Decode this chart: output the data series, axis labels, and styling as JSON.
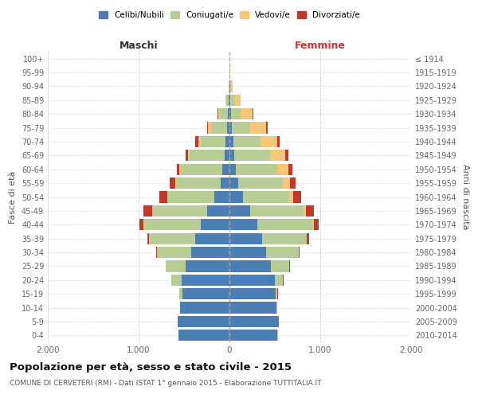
{
  "age_groups": [
    "0-4",
    "5-9",
    "10-14",
    "15-19",
    "20-24",
    "25-29",
    "30-34",
    "35-39",
    "40-44",
    "45-49",
    "50-54",
    "55-59",
    "60-64",
    "65-69",
    "70-74",
    "75-79",
    "80-84",
    "85-89",
    "90-94",
    "95-99",
    "100+"
  ],
  "birth_years": [
    "2010-2014",
    "2005-2009",
    "2000-2004",
    "1995-1999",
    "1990-1994",
    "1985-1989",
    "1980-1984",
    "1975-1979",
    "1970-1974",
    "1965-1969",
    "1960-1964",
    "1955-1959",
    "1950-1954",
    "1945-1949",
    "1940-1944",
    "1935-1939",
    "1930-1934",
    "1925-1929",
    "1920-1924",
    "1915-1919",
    "≤ 1914"
  ],
  "maschi": {
    "celibi": [
      560,
      570,
      540,
      520,
      530,
      480,
      420,
      380,
      320,
      250,
      170,
      100,
      75,
      55,
      40,
      25,
      15,
      5,
      2,
      0,
      0
    ],
    "coniugati": [
      1,
      2,
      5,
      30,
      110,
      220,
      380,
      500,
      620,
      600,
      510,
      490,
      460,
      380,
      280,
      180,
      90,
      30,
      8,
      2,
      0
    ],
    "vedovi": [
      0,
      0,
      0,
      0,
      1,
      1,
      1,
      2,
      3,
      5,
      5,
      10,
      15,
      20,
      25,
      30,
      15,
      5,
      2,
      0,
      0
    ],
    "divorziati": [
      0,
      0,
      0,
      1,
      2,
      5,
      10,
      25,
      45,
      90,
      90,
      55,
      30,
      30,
      30,
      10,
      8,
      3,
      0,
      0,
      0
    ]
  },
  "femmine": {
    "nubili": [
      530,
      540,
      520,
      510,
      500,
      460,
      400,
      360,
      310,
      230,
      150,
      100,
      70,
      55,
      40,
      25,
      15,
      10,
      5,
      0,
      0
    ],
    "coniugate": [
      1,
      1,
      4,
      20,
      90,
      200,
      360,
      490,
      610,
      590,
      510,
      490,
      460,
      390,
      300,
      200,
      110,
      50,
      15,
      3,
      0
    ],
    "vedove": [
      0,
      0,
      0,
      0,
      1,
      1,
      2,
      5,
      10,
      20,
      40,
      80,
      120,
      170,
      190,
      180,
      130,
      60,
      15,
      2,
      0
    ],
    "divorziate": [
      0,
      0,
      0,
      1,
      2,
      5,
      10,
      25,
      50,
      90,
      90,
      55,
      45,
      30,
      25,
      15,
      10,
      5,
      2,
      0,
      0
    ]
  },
  "colors": {
    "celibi": "#4a7eb5",
    "coniugati": "#b8cc96",
    "vedovi": "#f5c878",
    "divorziati": "#c0392b"
  },
  "title": "Popolazione per età, sesso e stato civile - 2015",
  "subtitle": "COMUNE DI CERVETERI (RM) - Dati ISTAT 1° gennaio 2015 - Elaborazione TUTTITALIA.IT",
  "xlabel_left": "Maschi",
  "xlabel_right": "Femmine",
  "ylabel_left": "Fasce di età",
  "ylabel_right": "Anni di nascita",
  "xlim": 2000,
  "xticklabels": [
    "2.000",
    "1.000",
    "0",
    "1.000",
    "2.000"
  ],
  "legend_labels": [
    "Celibi/Nubili",
    "Coniugati/e",
    "Vedovi/e",
    "Divorziati/e"
  ],
  "bg_color": "#ffffff",
  "grid_color": "#cccccc"
}
